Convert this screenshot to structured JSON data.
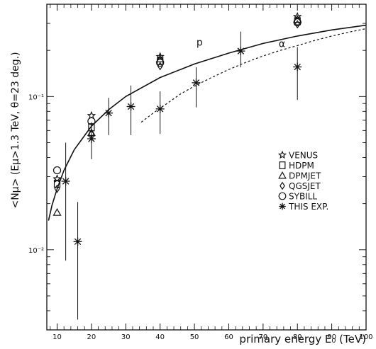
{
  "chart_data": {
    "type": "scatter",
    "title": "",
    "xlabel": "primary energy E₀ (TeV)",
    "ylabel": "<Nμ> (Eμ>1.3 TeV, θ=23 deg.)",
    "xlim": [
      7,
      100
    ],
    "ylim": [
      0.003,
      0.4
    ],
    "yscale": "log",
    "x_ticks": [
      10,
      20,
      30,
      40,
      50,
      60,
      70,
      80,
      90,
      100
    ],
    "x_tick_labels": [
      "10",
      "20",
      "30",
      "40",
      "50",
      "60",
      "70",
      "80",
      "90",
      "100"
    ],
    "y_ticks": [
      0.01,
      0.1
    ],
    "y_tick_labels": [
      "10⁻²",
      "10⁻¹"
    ],
    "grid": false,
    "legend_position": "right",
    "legend": [
      {
        "symbol": "star",
        "label": "VENUS"
      },
      {
        "symbol": "square",
        "label": "HDPM"
      },
      {
        "symbol": "triangle",
        "label": "DPMJET"
      },
      {
        "symbol": "diamond",
        "label": "QGSJET"
      },
      {
        "symbol": "circle",
        "label": "SYBILL"
      },
      {
        "symbol": "asterisk",
        "label": "THIS EXP."
      }
    ],
    "annotations": [
      {
        "text": "p",
        "x": 51.5,
        "y": 0.215
      },
      {
        "text": "α",
        "x": 75.5,
        "y": 0.21
      }
    ],
    "series": [
      {
        "name": "THIS EXP.",
        "marker": "asterisk",
        "points": [
          {
            "x": 12.5,
            "y": 0.028,
            "ylo": 0.0085,
            "yhi": 0.05
          },
          {
            "x": 16,
            "y": 0.0113,
            "ylo": 0.0035,
            "yhi": 0.0205
          },
          {
            "x": 20,
            "y": 0.053,
            "ylo": 0.039,
            "yhi": 0.068
          },
          {
            "x": 25,
            "y": 0.078,
            "ylo": 0.056,
            "yhi": 0.098
          },
          {
            "x": 31.5,
            "y": 0.086,
            "ylo": 0.056,
            "yhi": 0.118
          },
          {
            "x": 40,
            "y": 0.083,
            "ylo": 0.057,
            "yhi": 0.108
          },
          {
            "x": 50.5,
            "y": 0.123,
            "ylo": 0.085,
            "yhi": 0.155
          },
          {
            "x": 63.5,
            "y": 0.198,
            "ylo": 0.155,
            "yhi": 0.265
          },
          {
            "x": 80,
            "y": 0.156,
            "ylo": 0.095,
            "yhi": 0.21
          }
        ]
      },
      {
        "name": "VENUS",
        "marker": "star",
        "points": [
          {
            "x": 10,
            "y": 0.029
          },
          {
            "x": 20,
            "y": 0.075
          },
          {
            "x": 40,
            "y": 0.182
          },
          {
            "x": 80,
            "y": 0.332
          }
        ]
      },
      {
        "name": "HDPM",
        "marker": "square",
        "points": [
          {
            "x": 10,
            "y": 0.027
          },
          {
            "x": 20,
            "y": 0.063
          },
          {
            "x": 40,
            "y": 0.17
          },
          {
            "x": 80,
            "y": 0.31
          }
        ]
      },
      {
        "name": "DPMJET",
        "marker": "triangle",
        "points": [
          {
            "x": 10,
            "y": 0.0175
          },
          {
            "x": 20,
            "y": 0.058
          },
          {
            "x": 40,
            "y": 0.176
          },
          {
            "x": 80,
            "y": 0.318
          }
        ]
      },
      {
        "name": "QGSJET",
        "marker": "diamond",
        "points": [
          {
            "x": 10,
            "y": 0.025
          },
          {
            "x": 20,
            "y": 0.057
          },
          {
            "x": 40,
            "y": 0.158
          },
          {
            "x": 80,
            "y": 0.296
          }
        ]
      },
      {
        "name": "SYBILL",
        "marker": "circle",
        "points": [
          {
            "x": 10,
            "y": 0.033
          },
          {
            "x": 20,
            "y": 0.069
          },
          {
            "x": 40,
            "y": 0.166
          },
          {
            "x": 80,
            "y": 0.305
          }
        ]
      }
    ],
    "curves": [
      {
        "name": "p",
        "style": "solid",
        "points": [
          [
            7.5,
            0.0155
          ],
          [
            8.5,
            0.0195
          ],
          [
            10,
            0.025
          ],
          [
            12,
            0.033
          ],
          [
            15,
            0.045
          ],
          [
            20,
            0.064
          ],
          [
            25,
            0.082
          ],
          [
            30,
            0.1
          ],
          [
            40,
            0.133
          ],
          [
            50,
            0.163
          ],
          [
            60,
            0.192
          ],
          [
            70,
            0.222
          ],
          [
            80,
            0.248
          ],
          [
            90,
            0.272
          ],
          [
            100,
            0.292
          ]
        ]
      },
      {
        "name": "α",
        "style": "dashed",
        "points": [
          [
            34.5,
            0.068
          ],
          [
            38,
            0.078
          ],
          [
            42,
            0.09
          ],
          [
            46,
            0.104
          ],
          [
            50,
            0.117
          ],
          [
            55,
            0.133
          ],
          [
            60,
            0.15
          ],
          [
            65,
            0.167
          ],
          [
            70,
            0.184
          ],
          [
            75,
            0.2
          ],
          [
            80,
            0.215
          ],
          [
            85,
            0.232
          ],
          [
            90,
            0.248
          ],
          [
            95,
            0.263
          ],
          [
            100,
            0.277
          ]
        ]
      }
    ]
  }
}
